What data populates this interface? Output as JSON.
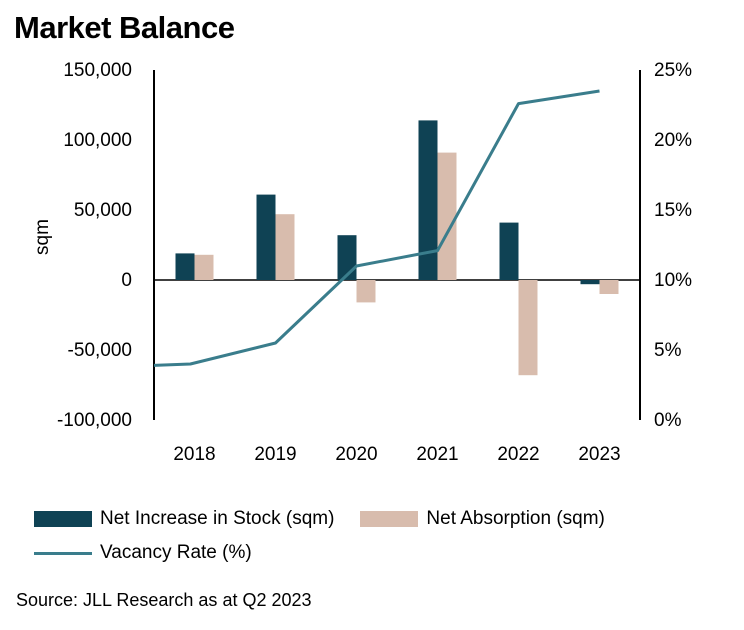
{
  "chart_data": {
    "type": "bar",
    "title": "Market Balance",
    "categories": [
      "2018",
      "2019",
      "2020",
      "2021",
      "2022",
      "2023"
    ],
    "series": [
      {
        "name": "Net Increase in Stock (sqm)",
        "kind": "bar",
        "axis": "left",
        "color": "#0f4254",
        "values": [
          19000,
          61000,
          32000,
          114000,
          41000,
          -3000
        ]
      },
      {
        "name": "Net Absorption (sqm)",
        "kind": "bar",
        "axis": "left",
        "color": "#d8bcad",
        "values": [
          18000,
          47000,
          -16000,
          91000,
          -68000,
          -10000
        ]
      },
      {
        "name": "Vacancy Rate (%)",
        "kind": "line",
        "axis": "right",
        "color": "#3a7d8c",
        "x": [
          -0.5,
          -0.05,
          1.0,
          2.0,
          3.0,
          4.0,
          5.0
        ],
        "values": [
          3.9,
          4.0,
          5.5,
          11.0,
          12.1,
          22.6,
          23.5
        ]
      }
    ],
    "ylabel": "sqm",
    "ylim": [
      -100000,
      150000
    ],
    "yticks": [
      -100000,
      -50000,
      0,
      50000,
      100000,
      150000
    ],
    "ytick_labels": [
      "-100,000",
      "-50,000",
      "0",
      "50,000",
      "100,000",
      "150,000"
    ],
    "y2lim": [
      0,
      25
    ],
    "y2ticks": [
      0,
      5,
      10,
      15,
      20,
      25
    ],
    "y2tick_labels": [
      "0%",
      "5%",
      "10%",
      "15%",
      "20%",
      "25%"
    ],
    "legend_position": "bottom"
  },
  "source": "Source: JLL Research as at Q2 2023"
}
